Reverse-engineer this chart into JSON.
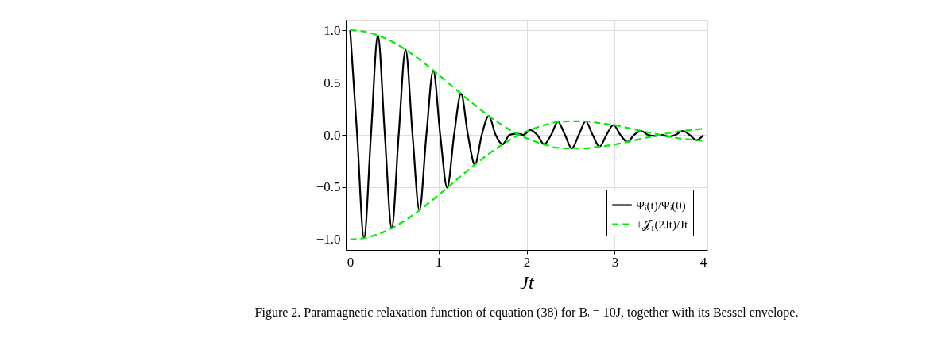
{
  "chart_data": {
    "type": "line",
    "xlabel": "Jt",
    "annotations": [
      "Figure 2. Paramagnetic relaxation function of equation (38) for Bᵢ = 10J, together with its Bessel envelope."
    ],
    "xlim": [
      -0.05,
      4.05
    ],
    "xticks": [
      0,
      1,
      2,
      3,
      4
    ],
    "ylim": [
      -1.1,
      1.1
    ],
    "yticks": [
      {
        "value": -1,
        "label": "−1.0"
      },
      {
        "value": -0.5,
        "label": "−0.5"
      },
      {
        "value": 0,
        "label": "0.0"
      },
      {
        "value": 0.5,
        "label": "0.5"
      },
      {
        "value": 1,
        "label": "1.0"
      }
    ],
    "grid": true,
    "legend": "bottom right",
    "series": [
      {
        "name": "Ψᵢ(t)/Ψᵢ(0)",
        "color": "#000000",
        "line_style": "solid",
        "x": [
          0,
          0.079,
          0.157,
          0.236,
          0.314,
          0.393,
          0.471,
          0.55,
          0.628,
          0.707,
          0.785,
          0.864,
          0.942,
          1.021,
          1.1,
          1.178,
          1.257,
          1.335,
          1.414,
          1.492,
          1.571,
          1.649,
          1.728,
          1.806,
          1.885,
          1.963,
          2.042,
          2.121,
          2.199,
          2.278,
          2.356,
          2.435,
          2.513,
          2.592,
          2.67,
          2.749,
          2.827,
          2.906,
          2.985,
          3.063,
          3.142,
          3.22,
          3.299,
          3.377,
          3.456,
          3.534,
          3.613,
          3.691,
          3.77,
          3.848,
          3.927,
          4.0
        ],
        "values": [
          1,
          0,
          -0.988,
          0,
          0.951,
          0,
          -0.893,
          0,
          0.815,
          0,
          -0.722,
          0,
          0.617,
          0,
          -0.506,
          0,
          0.393,
          0,
          -0.285,
          0,
          0.181,
          0,
          -0.091,
          0,
          0.013,
          0,
          0.047,
          0,
          -0.092,
          0,
          0.124,
          0,
          -0.13,
          0,
          0.129,
          0,
          -0.113,
          0,
          0.095,
          0,
          -0.067,
          0,
          0.038,
          0,
          -0.01,
          0,
          -0.017,
          0,
          0.038,
          0,
          -0.051,
          -0.006
        ]
      },
      {
        "name": "±𝒥₁(2Jt)/Jt",
        "color": "#00ee00",
        "line_style": "dashed",
        "x": [
          0,
          0.157,
          0.314,
          0.471,
          0.628,
          0.785,
          0.942,
          1.1,
          1.257,
          1.414,
          1.571,
          1.728,
          1.885,
          2.042,
          2.199,
          2.356,
          2.513,
          2.67,
          2.827,
          2.985,
          3.142,
          3.299,
          3.456,
          3.613,
          3.77,
          3.927,
          4.0
        ],
        "values": [
          1,
          0.988,
          0.951,
          0.893,
          0.815,
          0.722,
          0.617,
          0.506,
          0.393,
          0.285,
          0.181,
          0.091,
          0.013,
          -0.047,
          -0.092,
          -0.124,
          -0.13,
          -0.129,
          -0.113,
          -0.095,
          -0.067,
          -0.038,
          -0.01,
          0.017,
          0.038,
          0.051,
          0.059
        ]
      },
      {
        "color": "#00ee00",
        "line_style": "dashed",
        "x": [
          0,
          0.157,
          0.314,
          0.471,
          0.628,
          0.785,
          0.942,
          1.1,
          1.257,
          1.414,
          1.571,
          1.728,
          1.885,
          2.042,
          2.199,
          2.356,
          2.513,
          2.67,
          2.827,
          2.985,
          3.142,
          3.299,
          3.456,
          3.613,
          3.77,
          3.927,
          4.0
        ],
        "values": [
          -1,
          -0.988,
          -0.951,
          -0.893,
          -0.815,
          -0.722,
          -0.617,
          -0.506,
          -0.393,
          -0.285,
          -0.181,
          -0.091,
          -0.013,
          0.047,
          0.092,
          0.124,
          0.13,
          0.129,
          0.113,
          0.095,
          0.067,
          0.038,
          0.01,
          -0.017,
          -0.038,
          -0.051,
          -0.059
        ]
      }
    ]
  }
}
